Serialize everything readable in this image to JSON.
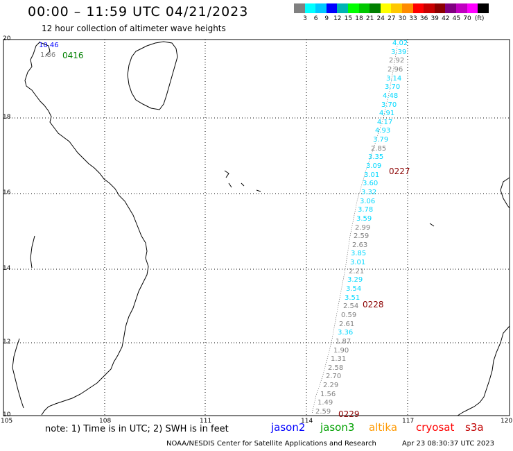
{
  "header": {
    "title": "00:00 – 11:59 UTC 04/21/2023",
    "subtitle": "12 hour collection of altimeter wave heights"
  },
  "scale": {
    "colors": [
      "#808080",
      "#00ffff",
      "#00c8ff",
      "#0000ff",
      "#00b4b4",
      "#00ff00",
      "#00c800",
      "#008000",
      "#ffff00",
      "#ffc800",
      "#ff8c00",
      "#ff0000",
      "#c80000",
      "#8b0000",
      "#800080",
      "#c000c0",
      "#ff00ff",
      "#000000"
    ],
    "labels": [
      "3",
      "6",
      "9",
      "12",
      "15",
      "18",
      "21",
      "24",
      "27",
      "30",
      "33",
      "36",
      "39",
      "42",
      "45",
      "70",
      "(ft)"
    ]
  },
  "axes": {
    "lat_labels": [
      "20",
      "18",
      "16",
      "14",
      "12",
      "10"
    ],
    "lon_labels": [
      "105",
      "108",
      "111",
      "114",
      "117",
      "120"
    ]
  },
  "track_times": [
    {
      "text": "0416",
      "color": "#008000"
    },
    {
      "text": "0227",
      "color": "#8b0000"
    },
    {
      "text": "0228",
      "color": "#8b0000"
    },
    {
      "text": "0229",
      "color": "#8b0000"
    }
  ],
  "topleft_values": [
    {
      "text": "10.46",
      "color": "#0000ff"
    },
    {
      "text": "1.86",
      "color": "#808080"
    }
  ],
  "wave_heights": [
    {
      "text": "4.02",
      "color": "#00d8ff"
    },
    {
      "text": "3.39",
      "color": "#00d8ff"
    },
    {
      "text": "2.92",
      "color": "#808080"
    },
    {
      "text": "2.96",
      "color": "#808080"
    },
    {
      "text": "3.14",
      "color": "#00d8ff"
    },
    {
      "text": "3.70",
      "color": "#00d8ff"
    },
    {
      "text": "4.48",
      "color": "#00d8ff"
    },
    {
      "text": "3.70",
      "color": "#00d8ff"
    },
    {
      "text": "4.91",
      "color": "#00d8ff"
    },
    {
      "text": "4.17",
      "color": "#00d8ff"
    },
    {
      "text": "4.93",
      "color": "#00d8ff"
    },
    {
      "text": "3.79",
      "color": "#00d8ff"
    },
    {
      "text": "2.85",
      "color": "#808080"
    },
    {
      "text": "3.35",
      "color": "#00d8ff"
    },
    {
      "text": "3.09",
      "color": "#00d8ff"
    },
    {
      "text": "3.01",
      "color": "#00d8ff"
    },
    {
      "text": "3.60",
      "color": "#00d8ff"
    },
    {
      "text": "3.32",
      "color": "#00d8ff"
    },
    {
      "text": "3.06",
      "color": "#00d8ff"
    },
    {
      "text": "3.78",
      "color": "#00d8ff"
    },
    {
      "text": "3.59",
      "color": "#00d8ff"
    },
    {
      "text": "2.99",
      "color": "#808080"
    },
    {
      "text": "2.59",
      "color": "#808080"
    },
    {
      "text": "2.63",
      "color": "#808080"
    },
    {
      "text": "3.85",
      "color": "#00d8ff"
    },
    {
      "text": "3.01",
      "color": "#00d8ff"
    },
    {
      "text": "2.21",
      "color": "#808080"
    },
    {
      "text": "3.29",
      "color": "#00d8ff"
    },
    {
      "text": "3.54",
      "color": "#00d8ff"
    },
    {
      "text": "3.51",
      "color": "#00d8ff"
    },
    {
      "text": "2.54",
      "color": "#808080"
    },
    {
      "text": "0.59",
      "color": "#808080"
    },
    {
      "text": "2.61",
      "color": "#808080"
    },
    {
      "text": "3.36",
      "color": "#00d8ff"
    },
    {
      "text": "1.87",
      "color": "#808080"
    },
    {
      "text": "1.90",
      "color": "#808080"
    },
    {
      "text": "1.31",
      "color": "#808080"
    },
    {
      "text": "2.58",
      "color": "#808080"
    },
    {
      "text": "2.70",
      "color": "#808080"
    },
    {
      "text": "2.29",
      "color": "#808080"
    },
    {
      "text": "1.56",
      "color": "#808080"
    },
    {
      "text": "1.49",
      "color": "#808080"
    },
    {
      "text": "2.59",
      "color": "#808080"
    }
  ],
  "footer": {
    "note": "note: 1) Time is in UTC; 2) SWH is in feet",
    "satellites": [
      {
        "text": "jason2",
        "color": "#0000ff"
      },
      {
        "text": "jason3",
        "color": "#00a000"
      },
      {
        "text": "altika",
        "color": "#ff9900"
      },
      {
        "text": "cryosat",
        "color": "#ff0000"
      },
      {
        "text": "s3a",
        "color": "#c00000"
      }
    ],
    "credit": "NOAA/NESDIS Center for Satellite Applications and Research",
    "timestamp": "Apr 23 08:30:37 UTC 2023"
  }
}
